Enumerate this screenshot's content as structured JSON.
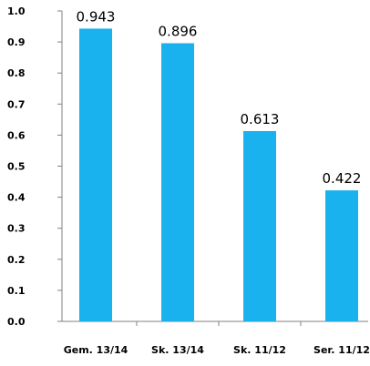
{
  "chart_data": {
    "type": "bar",
    "title": "",
    "xlabel": "",
    "ylabel": "",
    "categories": [
      "Gem. 13/14",
      "Sk. 13/14",
      "Sk. 11/12",
      "Ser. 11/12"
    ],
    "values": [
      0.943,
      0.896,
      0.613,
      0.422
    ],
    "value_labels": [
      "0.943",
      "0.896",
      "0.613",
      "0.422"
    ],
    "ylim": [
      0,
      1.0
    ],
    "yticks": [
      0.0,
      0.1,
      0.2,
      0.3,
      0.4,
      0.5,
      0.6,
      0.7,
      0.8,
      0.9,
      1.0
    ],
    "ytick_labels": [
      "0.0",
      "0.1",
      "0.2",
      "0.3",
      "0.4",
      "0.5",
      "0.6",
      "0.7",
      "0.8",
      "0.9",
      "1.0"
    ],
    "grid": false,
    "legend": "none",
    "colors": {
      "bar": "#19b1ee",
      "axis": "#808080",
      "text": "#000000"
    }
  }
}
